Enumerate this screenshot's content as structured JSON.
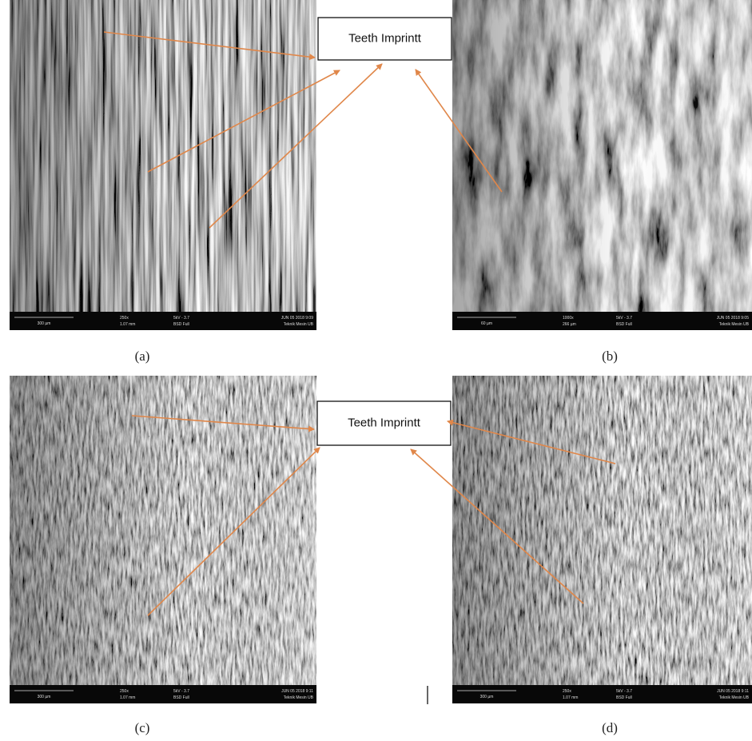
{
  "callouts": [
    "Teeth Imprintt",
    "Teeth Imprintt"
  ],
  "panels": [
    {
      "label": "(a)",
      "scale_bar": "300 µm",
      "magnification": "250x",
      "field_width": "1.07 mm",
      "voltage": "5kV - 3.7",
      "detector": "BSD Full",
      "date": "JUN 05 2018 9:09",
      "institution": "Teknik Mesin UB"
    },
    {
      "label": "(b)",
      "scale_bar": "60 µm",
      "magnification": "1000x",
      "field_width": "266 µm",
      "voltage": "5kV - 3.7",
      "detector": "BSD Full",
      "date": "JUN 05 2018 9:05",
      "institution": "Teknik Mesin UB"
    },
    {
      "label": "(c)",
      "scale_bar": "300 µm",
      "magnification": "250x",
      "field_width": "1.07 mm",
      "voltage": "5kV - 3.7",
      "detector": "BSD Full",
      "date": "JUN 05 2018 9:11",
      "institution": "Teknik Mesin UB"
    },
    {
      "label": "(d)",
      "scale_bar": "300 µm",
      "magnification": "250x",
      "field_width": "1.07 mm",
      "voltage": "5kV - 3.7",
      "detector": "BSD Full",
      "date": "JUN 05 2018 9:11",
      "institution": "Teknik Mesin UB"
    }
  ]
}
